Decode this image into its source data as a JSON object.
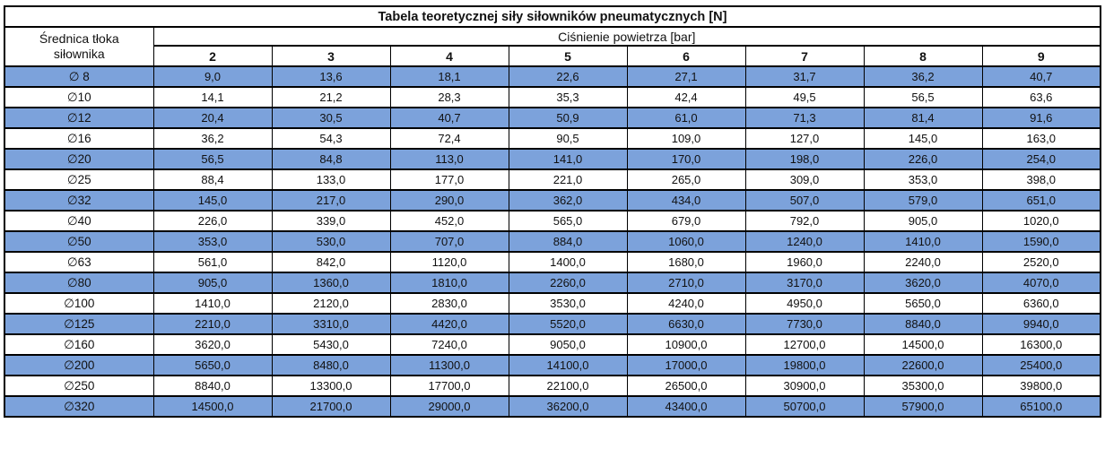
{
  "title": "Tabela teoretycznej siły siłowników pneumatycznych [N]",
  "header": {
    "diameter_label_line1": "Średnica tłoka",
    "diameter_label_line2": "siłownika",
    "pressure_group_label": "Ciśnienie powietrza [bar]",
    "pressure_values": [
      "2",
      "3",
      "4",
      "5",
      "6",
      "7",
      "8",
      "9"
    ]
  },
  "colors": {
    "highlight_row": "#7CA2DB",
    "default_row": "#FFFFFF",
    "border": "#000000",
    "text": "#111111"
  },
  "chart_data": {
    "type": "table",
    "title": "Tabela teoretycznej siły siłowników pneumatycznych [N]",
    "row_header": "Średnica tłoka siłownika",
    "column_group_header": "Ciśnienie powietrza [bar]",
    "pressures_bar": [
      2,
      3,
      4,
      5,
      6,
      7,
      8,
      9
    ],
    "decimal_separator": ",",
    "rows": [
      {
        "label": "∅ 8",
        "diameter_mm": 8,
        "forces_N": [
          9.0,
          13.6,
          18.1,
          22.6,
          27.1,
          31.7,
          36.2,
          40.7
        ]
      },
      {
        "label": "∅10",
        "diameter_mm": 10,
        "forces_N": [
          14.1,
          21.2,
          28.3,
          35.3,
          42.4,
          49.5,
          56.5,
          63.6
        ]
      },
      {
        "label": "∅12",
        "diameter_mm": 12,
        "forces_N": [
          20.4,
          30.5,
          40.7,
          50.9,
          61.0,
          71.3,
          81.4,
          91.6
        ]
      },
      {
        "label": "∅16",
        "diameter_mm": 16,
        "forces_N": [
          36.2,
          54.3,
          72.4,
          90.5,
          109.0,
          127.0,
          145.0,
          163.0
        ]
      },
      {
        "label": "∅20",
        "diameter_mm": 20,
        "forces_N": [
          56.5,
          84.8,
          113.0,
          141.0,
          170.0,
          198.0,
          226.0,
          254.0
        ]
      },
      {
        "label": "∅25",
        "diameter_mm": 25,
        "forces_N": [
          88.4,
          133.0,
          177.0,
          221.0,
          265.0,
          309.0,
          353.0,
          398.0
        ]
      },
      {
        "label": "∅32",
        "diameter_mm": 32,
        "forces_N": [
          145.0,
          217.0,
          290.0,
          362.0,
          434.0,
          507.0,
          579.0,
          651.0
        ]
      },
      {
        "label": "∅40",
        "diameter_mm": 40,
        "forces_N": [
          226.0,
          339.0,
          452.0,
          565.0,
          679.0,
          792.0,
          905.0,
          1020.0
        ]
      },
      {
        "label": "∅50",
        "diameter_mm": 50,
        "forces_N": [
          353.0,
          530.0,
          707.0,
          884.0,
          1060.0,
          1240.0,
          1410.0,
          1590.0
        ]
      },
      {
        "label": "∅63",
        "diameter_mm": 63,
        "forces_N": [
          561.0,
          842.0,
          1120.0,
          1400.0,
          1680.0,
          1960.0,
          2240.0,
          2520.0
        ]
      },
      {
        "label": "∅80",
        "diameter_mm": 80,
        "forces_N": [
          905.0,
          1360.0,
          1810.0,
          2260.0,
          2710.0,
          3170.0,
          3620.0,
          4070.0
        ]
      },
      {
        "label": "∅100",
        "diameter_mm": 100,
        "forces_N": [
          1410.0,
          2120.0,
          2830.0,
          3530.0,
          4240.0,
          4950.0,
          5650.0,
          6360.0
        ]
      },
      {
        "label": "∅125",
        "diameter_mm": 125,
        "forces_N": [
          2210.0,
          3310.0,
          4420.0,
          5520.0,
          6630.0,
          7730.0,
          8840.0,
          9940.0
        ]
      },
      {
        "label": "∅160",
        "diameter_mm": 160,
        "forces_N": [
          3620.0,
          5430.0,
          7240.0,
          9050.0,
          10900.0,
          12700.0,
          14500.0,
          16300.0
        ]
      },
      {
        "label": "∅200",
        "diameter_mm": 200,
        "forces_N": [
          5650.0,
          8480.0,
          11300.0,
          14100.0,
          17000.0,
          19800.0,
          22600.0,
          25400.0
        ]
      },
      {
        "label": "∅250",
        "diameter_mm": 250,
        "forces_N": [
          8840.0,
          13300.0,
          17700.0,
          22100.0,
          26500.0,
          30900.0,
          35300.0,
          39800.0
        ]
      },
      {
        "label": "∅320",
        "diameter_mm": 320,
        "forces_N": [
          14500.0,
          21700.0,
          29000.0,
          36200.0,
          43400.0,
          50700.0,
          57900.0,
          65100.0
        ]
      }
    ]
  }
}
